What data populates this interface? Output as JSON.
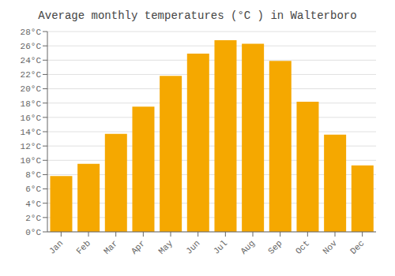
{
  "chart_data": {
    "type": "bar",
    "title": "Average monthly temperatures (°C ) in Walterboro",
    "categories": [
      "Jan",
      "Feb",
      "Mar",
      "Apr",
      "May",
      "Jun",
      "Jul",
      "Aug",
      "Sep",
      "Oct",
      "Nov",
      "Dec"
    ],
    "values": [
      7.8,
      9.5,
      13.7,
      17.5,
      21.8,
      24.9,
      26.8,
      26.3,
      23.9,
      18.2,
      13.6,
      9.3
    ],
    "color": "#F5A800",
    "ylim": [
      0,
      28
    ],
    "yticks": [
      {
        "value": 0,
        "label": "0°C"
      },
      {
        "value": 2,
        "label": "2°C"
      },
      {
        "value": 4,
        "label": "4°C"
      },
      {
        "value": 6,
        "label": "6°C"
      },
      {
        "value": 8,
        "label": "8°C"
      },
      {
        "value": 10,
        "label": "10°C"
      },
      {
        "value": 12,
        "label": "12°C"
      },
      {
        "value": 14,
        "label": "14°C"
      },
      {
        "value": 16,
        "label": "16°C"
      },
      {
        "value": 18,
        "label": "18°C"
      },
      {
        "value": 20,
        "label": "20°C"
      },
      {
        "value": 22,
        "label": "22°C"
      },
      {
        "value": 24,
        "label": "24°C"
      },
      {
        "value": 26,
        "label": "26°C"
      },
      {
        "value": 28,
        "label": "28°C"
      }
    ],
    "grid": true
  }
}
